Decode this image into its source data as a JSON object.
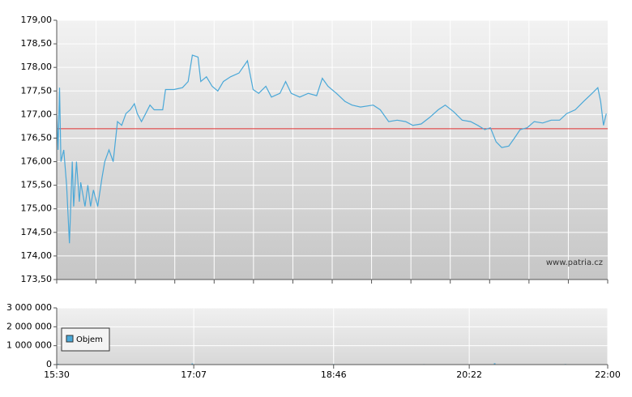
{
  "chart_data": [
    {
      "type": "line",
      "x": [
        "15:30",
        "15:31",
        "15:32",
        "15:33",
        "15:35",
        "15:37",
        "15:39",
        "15:41",
        "15:42",
        "15:44",
        "15:46",
        "15:47",
        "15:50",
        "15:52",
        "15:54",
        "15:56",
        "15:59",
        "16:02",
        "16:04",
        "16:07",
        "16:10",
        "16:13",
        "16:16",
        "16:19",
        "16:22",
        "16:25",
        "16:27",
        "16:30",
        "16:33",
        "16:36",
        "16:39",
        "16:45",
        "16:47",
        "16:53",
        "16:59",
        "17:03",
        "17:06",
        "17:10",
        "17:12",
        "17:16",
        "17:20",
        "17:24",
        "17:28",
        "17:33",
        "17:39",
        "17:45",
        "17:49",
        "17:53",
        "17:58",
        "18:02",
        "18:08",
        "18:12",
        "18:16",
        "18:22",
        "18:28",
        "18:34",
        "18:38",
        "18:42",
        "18:48",
        "18:54",
        "18:59",
        "19:05",
        "19:14",
        "19:19",
        "19:25",
        "19:31",
        "19:37",
        "19:42",
        "19:48",
        "19:54",
        "20:00",
        "20:05",
        "20:11",
        "20:17",
        "20:23",
        "20:28",
        "20:33",
        "20:37",
        "20:41",
        "20:45",
        "20:50",
        "20:54",
        "20:58",
        "21:03",
        "21:08",
        "21:14",
        "21:20",
        "21:26",
        "21:31",
        "21:37",
        "21:43",
        "21:49",
        "21:53",
        "21:55",
        "21:57",
        "21:59"
      ],
      "values": [
        177.02,
        176.25,
        177.57,
        176.0,
        176.25,
        175.5,
        174.27,
        176.0,
        175.05,
        176.0,
        175.15,
        175.56,
        175.05,
        175.5,
        175.05,
        175.4,
        175.05,
        175.65,
        176.0,
        176.25,
        176.0,
        176.85,
        176.77,
        177.02,
        177.1,
        177.23,
        177.02,
        176.85,
        177.02,
        177.2,
        177.1,
        177.1,
        177.53,
        177.53,
        177.57,
        177.7,
        178.26,
        178.22,
        177.7,
        177.8,
        177.6,
        177.5,
        177.7,
        177.8,
        177.88,
        178.14,
        177.53,
        177.45,
        177.6,
        177.37,
        177.45,
        177.7,
        177.45,
        177.37,
        177.45,
        177.4,
        177.77,
        177.6,
        177.45,
        177.28,
        177.2,
        177.16,
        177.2,
        177.1,
        176.85,
        176.88,
        176.85,
        176.77,
        176.8,
        176.94,
        177.1,
        177.2,
        177.06,
        176.88,
        176.85,
        176.77,
        176.68,
        176.72,
        176.42,
        176.3,
        176.33,
        176.5,
        176.68,
        176.72,
        176.85,
        176.82,
        176.88,
        176.88,
        177.02,
        177.1,
        177.28,
        177.45,
        177.57,
        177.28,
        176.77,
        177.02
      ],
      "color": "#4aa8d8",
      "reference_line": 176.7,
      "reference_color": "#e03030",
      "xlim": [
        "15:30",
        "22:00"
      ],
      "ylim": [
        173.5,
        179.0
      ],
      "yticks": [
        {
          "value": 173.5,
          "label": "173,50"
        },
        {
          "value": 174.0,
          "label": "174,00"
        },
        {
          "value": 174.5,
          "label": "174,50"
        },
        {
          "value": 175.0,
          "label": "175,00"
        },
        {
          "value": 175.5,
          "label": "175,50"
        },
        {
          "value": 176.0,
          "label": "176,00"
        },
        {
          "value": 176.5,
          "label": "176,50"
        },
        {
          "value": 177.0,
          "label": "177,00"
        },
        {
          "value": 177.5,
          "label": "177,50"
        },
        {
          "value": 178.0,
          "label": "178,00"
        },
        {
          "value": 178.5,
          "label": "178,50"
        },
        {
          "value": 179.0,
          "label": "179,00"
        }
      ],
      "annotation": "www.patria.cz",
      "grid": true
    },
    {
      "type": "bar",
      "x": [
        "15:31",
        "16:10",
        "17:06",
        "18:46",
        "19:50",
        "20:40",
        "21:30"
      ],
      "series": [
        {
          "name": "Objem",
          "color": "#4aa8d8",
          "values": [
            40000,
            20000,
            60000,
            30000,
            25000,
            70000,
            30000
          ]
        }
      ],
      "xlim": [
        "15:30",
        "22:00"
      ],
      "xticks": [
        "15:30",
        "17:07",
        "18:46",
        "20:22",
        "22:00"
      ],
      "ylim": [
        0,
        3000000
      ],
      "yticks": [
        {
          "value": 0,
          "label": "0"
        },
        {
          "value": 1000000,
          "label": "1 000 000"
        },
        {
          "value": 2000000,
          "label": "2 000 000"
        },
        {
          "value": 3000000,
          "label": "3 000 000"
        }
      ],
      "grid": true
    }
  ]
}
